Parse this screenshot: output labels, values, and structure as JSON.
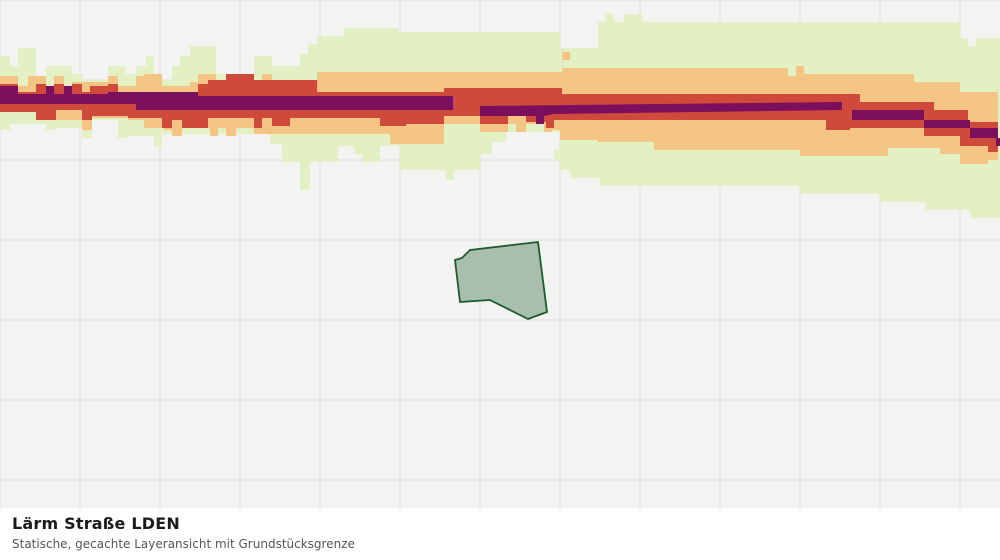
{
  "map": {
    "legend_classes": [
      {
        "level": 1,
        "color": "#e3f0c4"
      },
      {
        "level": 2,
        "color": "#f4c484"
      },
      {
        "level": 3,
        "color": "#d04a3c"
      },
      {
        "level": 4,
        "color": "#7b0f5d"
      }
    ],
    "grid_color": "#dcdedb",
    "background_color": "#f3f4f1",
    "parcel": {
      "fill": "#a9bfad",
      "stroke": "#1d5a2d"
    }
  },
  "caption": {
    "title": "Lärm Straße LDEN",
    "subtitle": "Statische, gecachte Layeransicht mit Grundstücksgrenze"
  }
}
